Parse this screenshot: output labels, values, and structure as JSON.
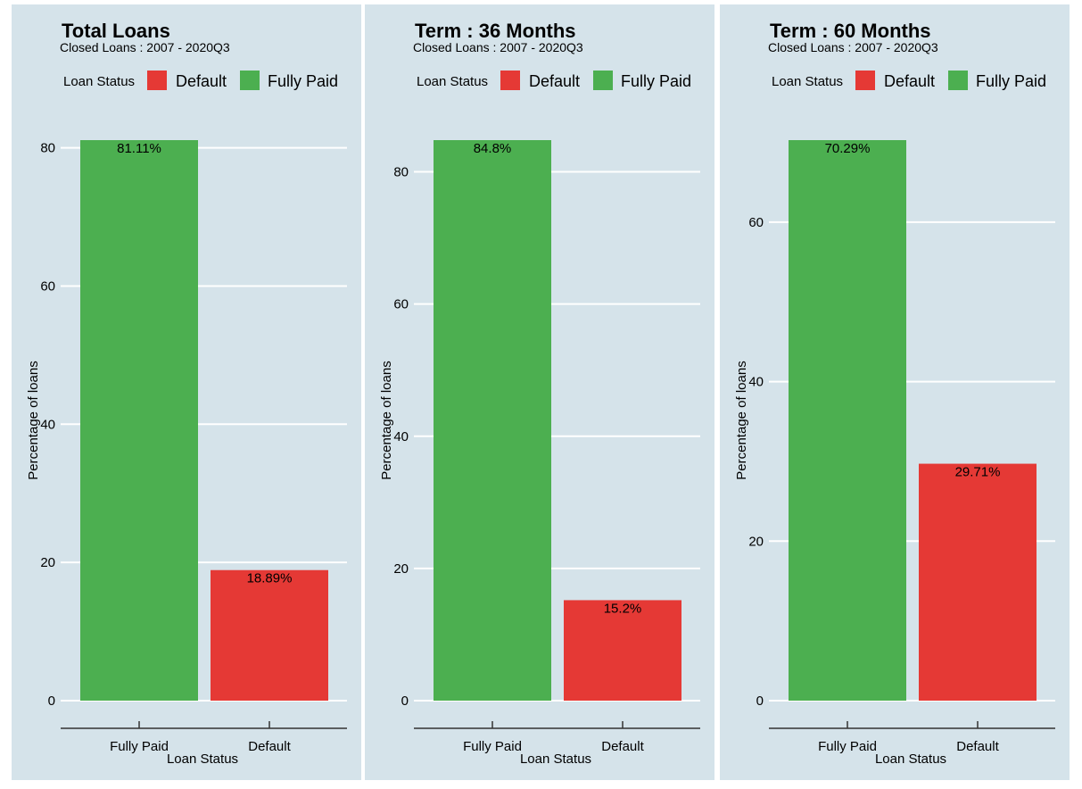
{
  "legend": {
    "title": "Loan Status",
    "items": [
      {
        "label": "Default",
        "color": "#e53935"
      },
      {
        "label": "Fully Paid",
        "color": "#4caf50"
      }
    ]
  },
  "colors": {
    "background": "#d5e3ea",
    "fully_paid": "#4caf50",
    "default": "#e53935",
    "grid": "#ffffff"
  },
  "chart_data": [
    {
      "type": "bar",
      "title": "Total Loans",
      "subtitle": "Closed Loans : 2007 - 2020Q3",
      "xlabel": "Loan Status",
      "ylabel": "Percentage of loans",
      "categories": [
        "Fully Paid",
        "Default"
      ],
      "values": [
        81.11,
        18.89
      ],
      "data_labels": [
        "81.11%",
        "18.89%"
      ],
      "yticks": [
        0,
        20,
        40,
        60,
        80
      ],
      "ylim": [
        0,
        81.11
      ],
      "legend_position": "top",
      "grid": true
    },
    {
      "type": "bar",
      "title": "Term : 36 Months",
      "subtitle": "Closed Loans : 2007 - 2020Q3",
      "xlabel": "Loan Status",
      "ylabel": "Percentage of loans",
      "categories": [
        "Fully Paid",
        "Default"
      ],
      "values": [
        84.8,
        15.2
      ],
      "data_labels": [
        "84.8%",
        "15.2%"
      ],
      "yticks": [
        0,
        20,
        40,
        60,
        80
      ],
      "ylim": [
        0,
        84.8
      ],
      "legend_position": "top",
      "grid": true
    },
    {
      "type": "bar",
      "title": "Term : 60 Months",
      "subtitle": "Closed Loans : 2007 - 2020Q3",
      "xlabel": "Loan Status",
      "ylabel": "Percentage of loans",
      "categories": [
        "Fully Paid",
        "Default"
      ],
      "values": [
        70.29,
        29.71
      ],
      "data_labels": [
        "70.29%",
        "29.71%"
      ],
      "yticks": [
        0,
        20,
        40,
        60
      ],
      "ylim": [
        0,
        70.29
      ],
      "legend_position": "top",
      "grid": true
    }
  ]
}
